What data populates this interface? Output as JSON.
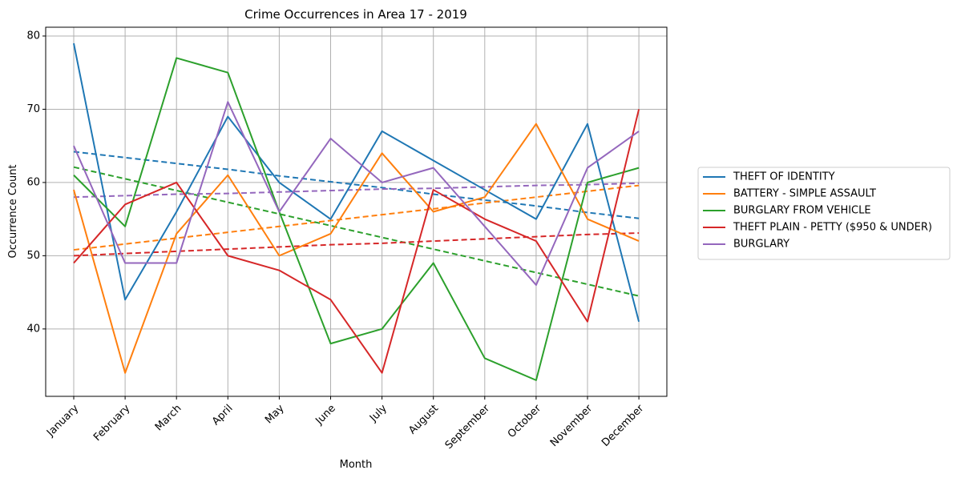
{
  "chart_data": {
    "type": "line",
    "title": "Crime Occurrences in Area 17 - 2019",
    "xlabel": "Month",
    "ylabel": "Occurrence Count",
    "categories": [
      "January",
      "February",
      "March",
      "April",
      "May",
      "June",
      "July",
      "August",
      "September",
      "October",
      "November",
      "December"
    ],
    "ylim": [
      30.8,
      81.2
    ],
    "yticks": [
      40,
      50,
      60,
      70,
      80
    ],
    "grid": true,
    "legend_position": "outside-right",
    "series": [
      {
        "name": "THEFT OF IDENTITY",
        "color": "#1f77b4",
        "values": [
          79,
          44,
          56,
          69,
          60,
          55,
          67,
          63,
          59,
          55,
          68,
          41
        ],
        "trend": [
          64.2,
          63.4,
          62.6,
          61.8,
          60.9,
          60.1,
          59.3,
          58.4,
          57.6,
          56.8,
          55.9,
          55.1
        ]
      },
      {
        "name": "BATTERY - SIMPLE ASSAULT",
        "color": "#ff7f0e",
        "values": [
          59,
          34,
          53,
          61,
          50,
          53,
          64,
          56,
          58,
          68,
          55,
          52
        ],
        "trend": [
          50.8,
          51.6,
          52.4,
          53.2,
          54.0,
          54.8,
          55.6,
          56.4,
          57.2,
          58.0,
          58.8,
          59.6
        ]
      },
      {
        "name": "BURGLARY FROM VEHICLE",
        "color": "#2ca02c",
        "values": [
          61,
          54,
          77,
          75,
          56,
          38,
          40,
          49,
          36,
          33,
          60,
          62
        ],
        "trend": [
          62.1,
          60.5,
          58.9,
          57.3,
          55.7,
          54.1,
          52.5,
          50.9,
          49.3,
          47.7,
          46.1,
          44.5
        ]
      },
      {
        "name": "THEFT PLAIN - PETTY ($950 & UNDER)",
        "color": "#d62728",
        "values": [
          49,
          57,
          60,
          50,
          48,
          44,
          34,
          59,
          55,
          52,
          41,
          70
        ],
        "trend": [
          50.0,
          50.3,
          50.6,
          50.9,
          51.2,
          51.5,
          51.7,
          52.0,
          52.3,
          52.6,
          52.9,
          53.1
        ]
      },
      {
        "name": "BURGLARY",
        "color": "#9467bd",
        "values": [
          65,
          49,
          49,
          71,
          56,
          66,
          60,
          62,
          54,
          46,
          62,
          67
        ],
        "trend": [
          58.0,
          58.2,
          58.4,
          58.5,
          58.7,
          58.9,
          59.1,
          59.2,
          59.4,
          59.6,
          59.7,
          59.9
        ]
      }
    ]
  }
}
